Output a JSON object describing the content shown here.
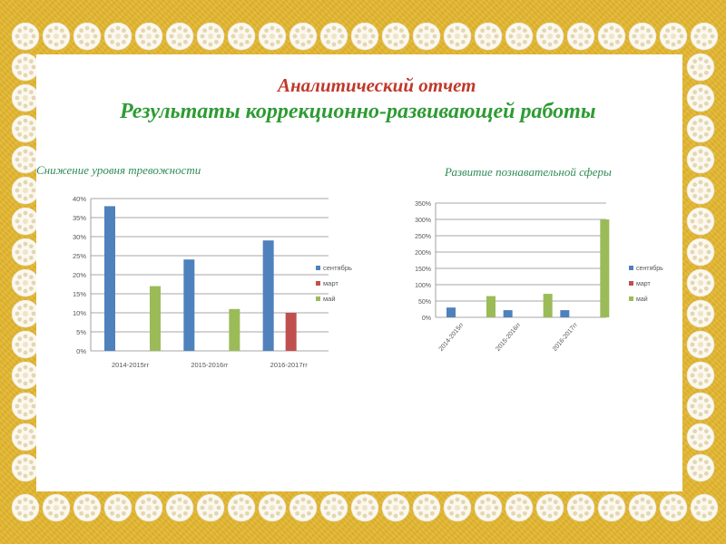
{
  "slide": {
    "title_line1": "Аналитический отчет",
    "title_line2": "Результаты коррекционно-развивающей работы"
  },
  "colors": {
    "background": "#e3b62e",
    "panel": "#ffffff",
    "lace": "#fbf8ef",
    "title1": "#c0392b",
    "title2": "#2e9b34"
  },
  "charts": {
    "left_title": "Снижение уровня тревожности",
    "right_title": "Развитие познавательной сферы"
  },
  "chart_data": [
    {
      "type": "bar",
      "title": "Снижение уровня тревожности",
      "categories": [
        "2014-2015гг",
        "2015-2016гг",
        "2016-2017гг"
      ],
      "series": [
        {
          "name": "сентябрь",
          "color": "#4f81bd",
          "values": [
            38,
            24,
            29
          ]
        },
        {
          "name": "март",
          "color": "#c0504d",
          "values": [
            null,
            null,
            10
          ]
        },
        {
          "name": "май",
          "color": "#9bbb59",
          "values": [
            17,
            11,
            null
          ]
        }
      ],
      "ylim": [
        0,
        40
      ],
      "yticks": [
        0,
        5,
        10,
        15,
        20,
        25,
        30,
        35,
        40
      ],
      "ytick_labels": [
        "0%",
        "5%",
        "10%",
        "15%",
        "20%",
        "25%",
        "30%",
        "35%",
        "40%"
      ],
      "grid": true,
      "legend": "right"
    },
    {
      "type": "bar",
      "title": "Развитие познавательной сферы",
      "categories": [
        "2014-2015гг",
        "2015-2016гг",
        "2016-2017гг"
      ],
      "series": [
        {
          "name": "сентябрь",
          "color": "#4f81bd",
          "values": [
            30,
            22,
            22
          ]
        },
        {
          "name": "март",
          "color": "#c0504d",
          "values": [
            null,
            null,
            null
          ]
        },
        {
          "name": "май",
          "color": "#9bbb59",
          "values": [
            65,
            72,
            300
          ]
        }
      ],
      "ylim": [
        0,
        350
      ],
      "yticks": [
        0,
        50,
        100,
        150,
        200,
        250,
        300,
        350
      ],
      "ytick_labels": [
        "0%",
        "50%",
        "100%",
        "150%",
        "200%",
        "250%",
        "300%",
        "350%"
      ],
      "grid": true,
      "legend": "right"
    }
  ]
}
